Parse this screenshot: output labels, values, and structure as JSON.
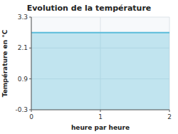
{
  "chart_data": {
    "type": "area",
    "title": "Evolution de la température",
    "x_label": "heure par heure",
    "y_label": "Température en °C",
    "x": [
      0,
      2
    ],
    "values": [
      2.7,
      2.7
    ],
    "color": "#5bbcda",
    "xlim": [
      0,
      2
    ],
    "ylim": [
      -0.3,
      3.3
    ],
    "xticks": [
      0,
      1,
      2
    ],
    "yticks": [
      -0.3,
      0.9,
      2.1,
      3.3
    ],
    "grid": true
  }
}
